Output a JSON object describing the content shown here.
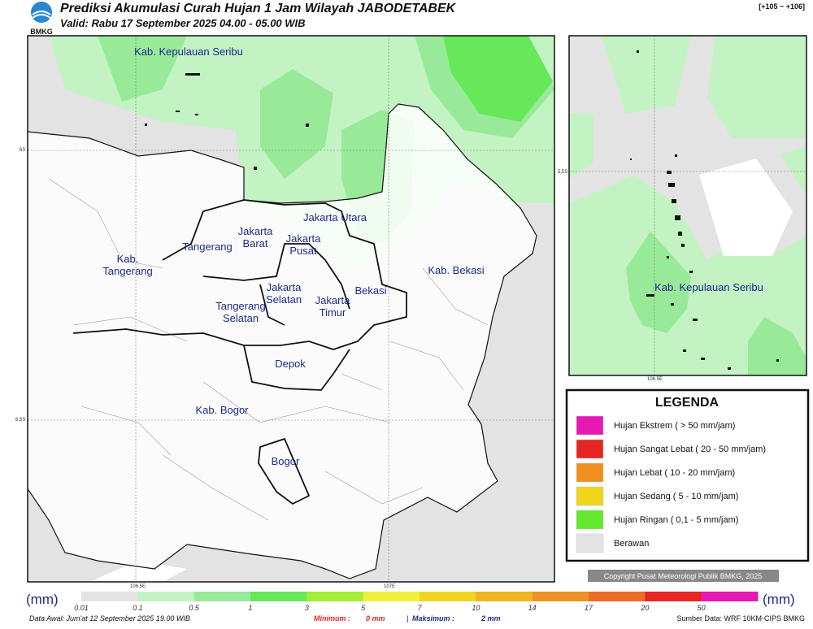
{
  "header": {
    "logo": "BMKG",
    "title": "Prediksi Akumulasi Curah Hujan 1 Jam Wilayah JABODETABEK",
    "subtitle": "Valid: Rabu 17 September 2025 04.00 - 05.00 WIB",
    "range": "[+105 ~ +106]"
  },
  "main_map": {
    "labels": [
      "Kab. Kepulauan Seribu",
      "Jakarta Utara",
      "Jakarta\nBarat",
      "Jakarta\nPusat",
      "Tangerang",
      "Kab.\nTangerang",
      "Jakarta\nSelatan",
      "Tangerang\nSelatan",
      "Jakarta\nTimur",
      "Bekasi",
      "Kab. Bekasi",
      "Depok",
      "Kab. Bogor",
      "Bogor"
    ],
    "lat_labels": [
      "6S",
      "6.5S"
    ],
    "lon_labels": [
      "106.5E",
      "107E"
    ]
  },
  "inset_map": {
    "labels": [
      "Kab. Kepulauan Seribu"
    ],
    "lat_labels": [
      "5.5S"
    ],
    "lon_labels": [
      "106.5E"
    ]
  },
  "legend": {
    "title": "LEGENDA",
    "items": [
      {
        "label": "Hujan Ekstrem ( > 50 mm/jam)",
        "color": "#e619b4"
      },
      {
        "label": "Hujan Sangat Lebat ( 20 - 50 mm/jam)",
        "color": "#e62622"
      },
      {
        "label": "Hujan Lebat ( 10 - 20 mm/jam)",
        "color": "#ee8f1f"
      },
      {
        "label": "Hujan Sedang ( 5 - 10 mm/jam)",
        "color": "#edd51a"
      },
      {
        "label": "Hujan Ringan ( 0,1 - 5 mm/jam)",
        "color": "#62e82c"
      },
      {
        "label": "Berawan",
        "color": "#e3e3e3"
      }
    ]
  },
  "copyright": "Copyright Pusat Meteorologi Publik BMKG, 2025",
  "colorbar": {
    "unit": "(mm)",
    "ticks": [
      "0.01",
      "0.1",
      "0.5",
      "1",
      "3",
      "5",
      "7",
      "10",
      "14",
      "17",
      "20",
      "50"
    ],
    "colors": [
      "#e3e3e3",
      "#c3f2c3",
      "#98ea98",
      "#66e85a",
      "#a4ee38",
      "#f0f03a",
      "#f0d424",
      "#eeb424",
      "#ee9224",
      "#ec6c24",
      "#e62622",
      "#e619b4"
    ]
  },
  "footer": {
    "data_awal": "Data Awal: Jum'at 12 September 2025 19.00 WIB",
    "min_label": "Minimum :",
    "min_value": "0 mm",
    "separator": "|",
    "max_label": "Maksimum :",
    "max_value": "2 mm",
    "source": "Sumber Data: WRF 10KM-CIPS BMKG"
  }
}
